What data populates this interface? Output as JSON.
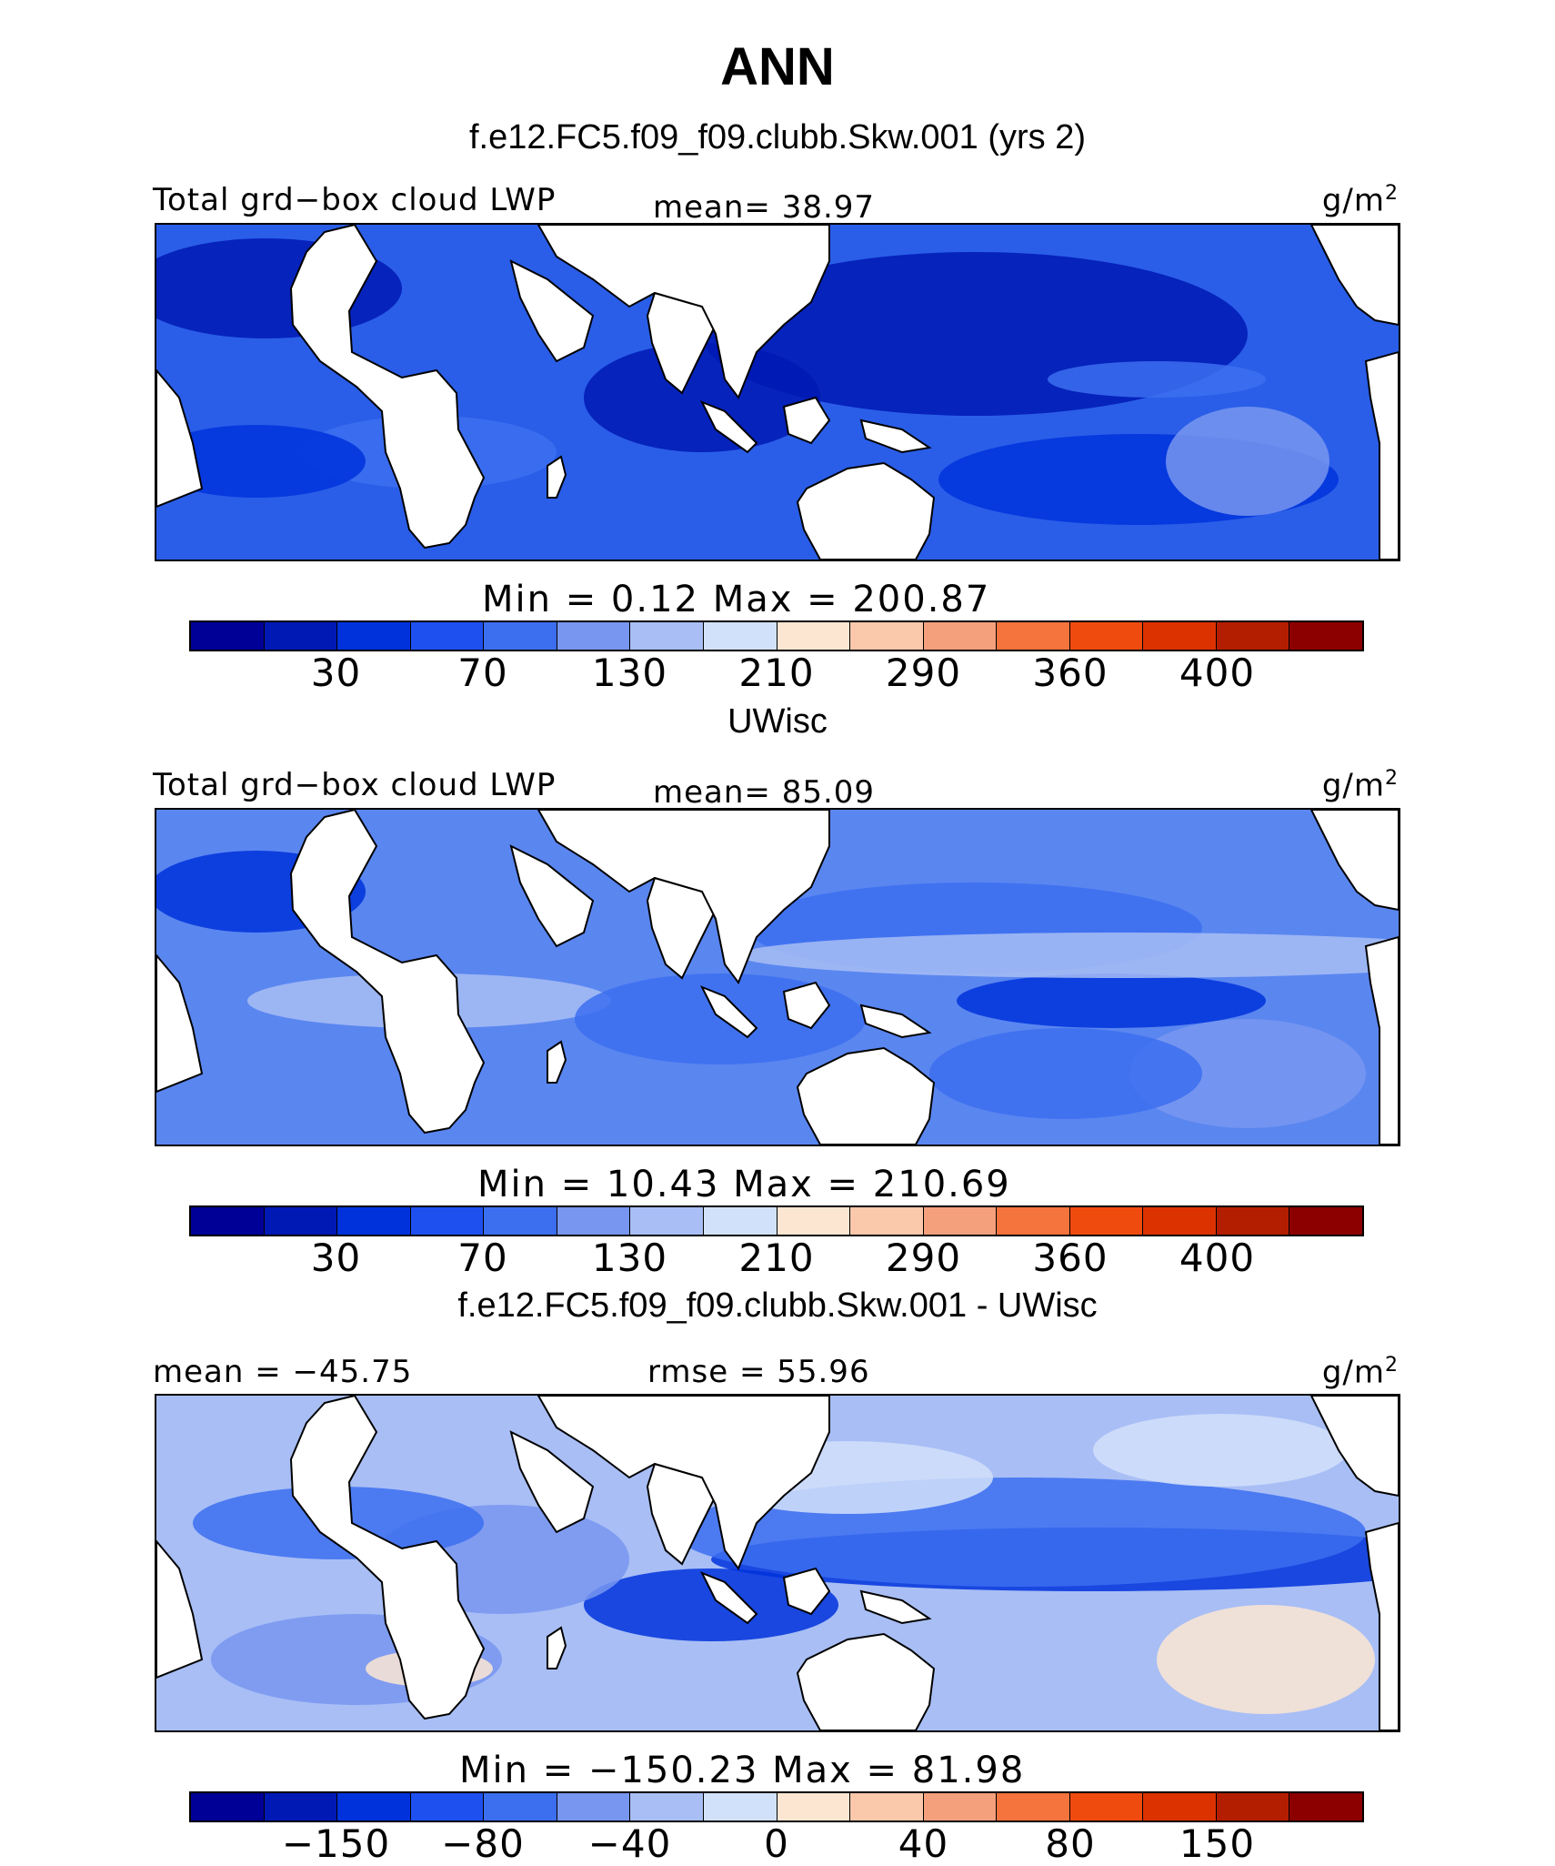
{
  "figure": {
    "title": "ANN"
  },
  "colorbar_colors": [
    "#000096",
    "#0019B4",
    "#0032DC",
    "#1E50F0",
    "#3C6EF0",
    "#7896F0",
    "#A8BEF5",
    "#D2E1FA",
    "#FCE6D2",
    "#FAC8AA",
    "#F5A07D",
    "#F5733C",
    "#F04B0F",
    "#DC3200",
    "#B41E00",
    "#8C0000"
  ],
  "panels": [
    {
      "title": "f.e12.FC5.f09_f09.clubb.Skw.001 (yrs 2)",
      "left_label": "Total grd−box cloud LWP",
      "center_label": "mean=  38.97",
      "units": "g/m",
      "units_exp": "2",
      "min_max": "Min =    0.12 Max = 200.87",
      "ticks": [
        "30",
        "70",
        "130",
        "210",
        "290",
        "360",
        "400"
      ],
      "ocean_color": "#2A5EE8",
      "field_colors": [
        "#0019B4",
        "#0032DC",
        "#3C6EF0",
        "#7896F0"
      ]
    },
    {
      "title": "UWisc",
      "left_label": "Total grd−box cloud LWP",
      "center_label": "mean=  85.09",
      "units": "g/m",
      "units_exp": "2",
      "min_max": "Min =  10.43 Max = 210.69",
      "ticks": [
        "30",
        "70",
        "130",
        "210",
        "290",
        "360",
        "400"
      ],
      "ocean_color": "#5A86F0",
      "field_colors": [
        "#0032DC",
        "#3C6EF0",
        "#7896F0",
        "#A8BEF5"
      ]
    },
    {
      "title": "f.e12.FC5.f09_f09.clubb.Skw.001 - UWisc",
      "left_label": "mean = −45.75",
      "center_label": "rmse =  55.96",
      "units": "g/m",
      "units_exp": "2",
      "min_max": "Min = −150.23 Max =   81.98",
      "ticks": [
        "−150",
        "−80",
        "−40",
        "0",
        "40",
        "80",
        "150"
      ],
      "ocean_color": "#A8BEF5",
      "field_colors": [
        "#0032DC",
        "#3C6EF0",
        "#7896F0",
        "#D2E1FA",
        "#FCE6D2"
      ]
    }
  ]
}
